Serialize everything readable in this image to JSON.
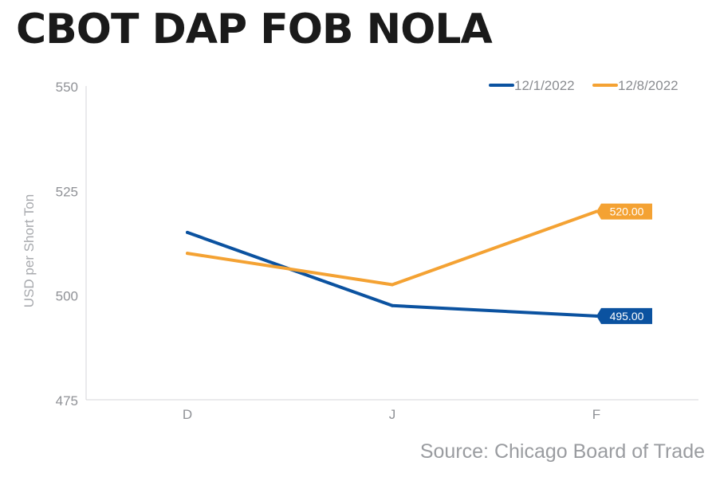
{
  "chart_data": {
    "type": "line",
    "title": "CBOT DAP FOB NOLA",
    "ylabel": "USD per Short Ton",
    "xlabel": "",
    "categories": [
      "D",
      "J",
      "F"
    ],
    "ylim": [
      475,
      550
    ],
    "yticks": [
      475,
      500,
      525,
      550
    ],
    "series": [
      {
        "name": "12/1/2022",
        "color": "#0b52a0",
        "values": [
          515,
          497.5,
          495
        ],
        "end_label": "495.00"
      },
      {
        "name": "12/8/2022",
        "color": "#f4a233",
        "values": [
          510,
          502.5,
          520
        ],
        "end_label": "520.00"
      }
    ],
    "legend_position": "top-right",
    "grid": false,
    "source": "Source: Chicago Board of Trade"
  }
}
